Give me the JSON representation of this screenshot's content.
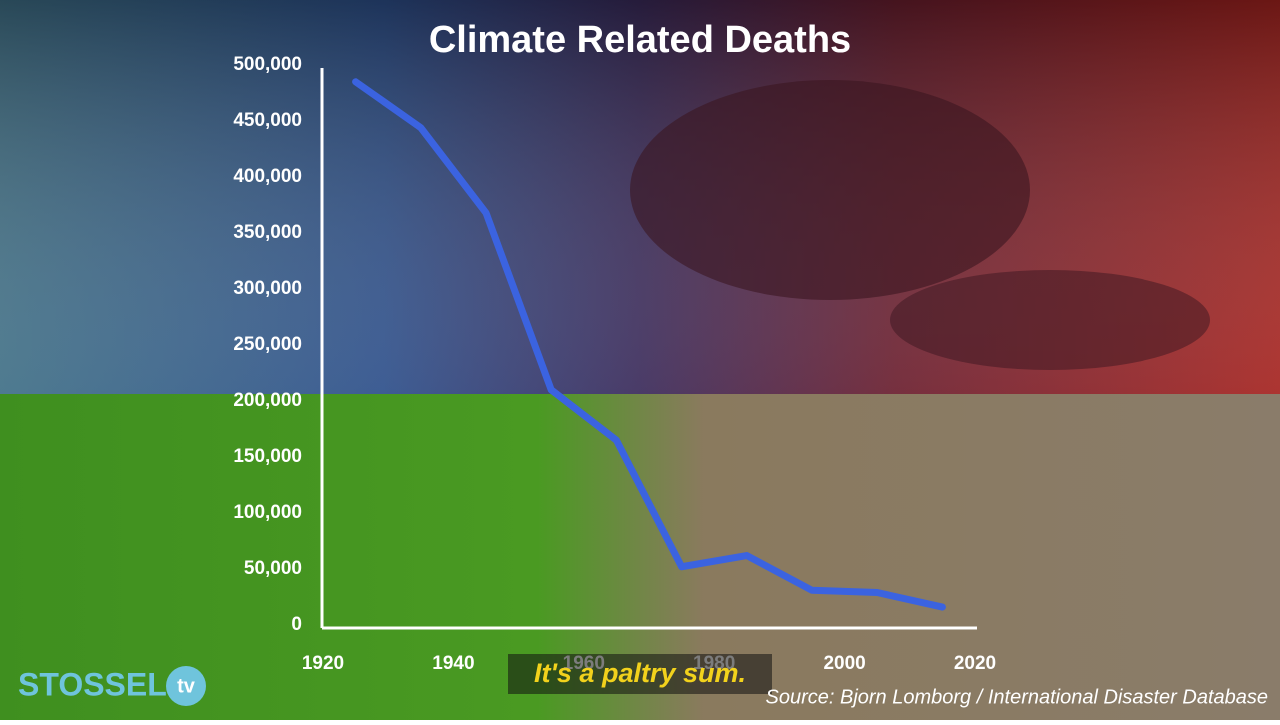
{
  "chart_data": {
    "type": "line",
    "title": "Climate Related Deaths",
    "x": [
      1925,
      1935,
      1945,
      1955,
      1965,
      1975,
      1985,
      1995,
      2005,
      2015
    ],
    "values": [
      485000,
      444000,
      368000,
      210000,
      165000,
      52000,
      62000,
      31000,
      29000,
      16000
    ],
    "color": "#3b63e0",
    "xlim": [
      1920,
      2020
    ],
    "xticks": [
      1920,
      1940,
      1960,
      1980,
      2000,
      2020
    ],
    "ylim": [
      0,
      500000
    ],
    "yticks": [
      0,
      {
        "value": 50000,
        "label": "50,000"
      },
      {
        "value": 100000,
        "label": "100,000"
      },
      {
        "value": 150000,
        "label": "150,000"
      },
      {
        "value": 200000,
        "label": "200,000"
      },
      {
        "value": 250000,
        "label": "250,000"
      },
      {
        "value": 300000,
        "label": "300,000"
      },
      {
        "value": 350000,
        "label": "350,000"
      },
      {
        "value": 400000,
        "label": "400,000"
      },
      {
        "value": 450000,
        "label": "450,000"
      },
      {
        "value": 500000,
        "label": "500,000"
      }
    ],
    "source": "Source: Bjorn Lomborg / International Disaster Database"
  },
  "caption": "It's a paltry sum.",
  "logo": {
    "name": "STOSSEL",
    "badge": "tv"
  }
}
